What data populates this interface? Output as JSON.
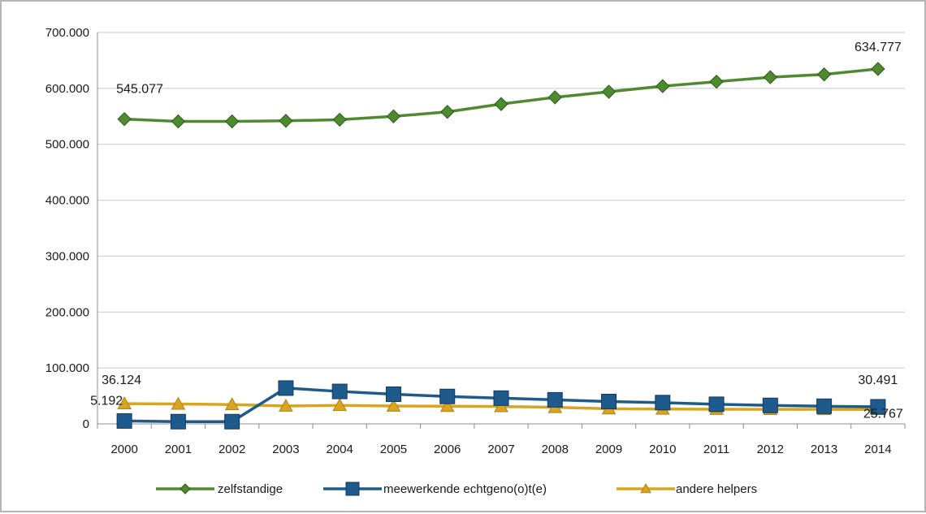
{
  "chart_data": {
    "type": "line",
    "title": "",
    "xlabel": "",
    "ylabel": "",
    "ylim": [
      0,
      700000
    ],
    "grid": true,
    "legend_position": "bottom",
    "y_ticks": [
      {
        "value": 0,
        "label": "0"
      },
      {
        "value": 100000,
        "label": "100.000"
      },
      {
        "value": 200000,
        "label": "200.000"
      },
      {
        "value": 300000,
        "label": "300.000"
      },
      {
        "value": 400000,
        "label": "400.000"
      },
      {
        "value": 500000,
        "label": "500.000"
      },
      {
        "value": 600000,
        "label": "600.000"
      },
      {
        "value": 700000,
        "label": "700.000"
      }
    ],
    "categories": [
      "2000",
      "2001",
      "2002",
      "2003",
      "2004",
      "2005",
      "2006",
      "2007",
      "2008",
      "2009",
      "2010",
      "2011",
      "2012",
      "2013",
      "2014"
    ],
    "series": [
      {
        "name": "zelfstandige",
        "color": "#4e8a2f",
        "marker": "diamond",
        "values": [
          545077,
          541000,
          541000,
          542000,
          544000,
          550000,
          558000,
          572000,
          584000,
          594000,
          604000,
          612000,
          620000,
          625000,
          634777
        ]
      },
      {
        "name": "meewerkende  echtgeno(o)t(e)",
        "color": "#1f5a8c",
        "marker": "square",
        "values": [
          5192,
          4000,
          4000,
          64000,
          58000,
          53000,
          49000,
          46000,
          43000,
          40000,
          38000,
          35000,
          33000,
          31500,
          30491
        ]
      },
      {
        "name": "andere helpers",
        "color": "#d9a520",
        "marker": "triangle",
        "values": [
          36124,
          35500,
          34500,
          32000,
          33000,
          32000,
          31500,
          31000,
          29500,
          27000,
          26500,
          26200,
          26000,
          25900,
          25767
        ]
      }
    ],
    "data_labels": [
      {
        "series": 0,
        "index": 0,
        "text": "545.077"
      },
      {
        "series": 0,
        "index": 14,
        "text": "634.777"
      },
      {
        "series": 1,
        "index": 0,
        "text": "5.192"
      },
      {
        "series": 1,
        "index": 14,
        "text": "30.491"
      },
      {
        "series": 2,
        "index": 0,
        "text": "36.124"
      },
      {
        "series": 2,
        "index": 14,
        "text": "25.767"
      }
    ]
  }
}
